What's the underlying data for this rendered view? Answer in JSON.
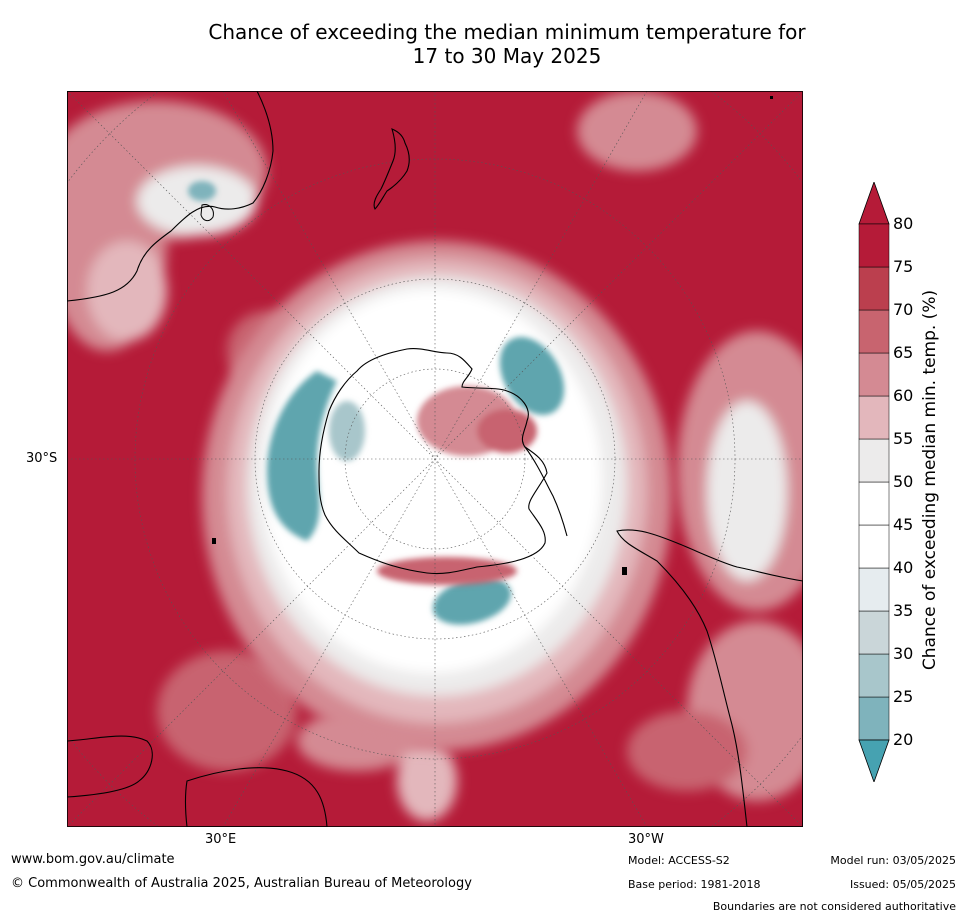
{
  "title": {
    "line1": "Chance of exceeding the median minimum temperature for",
    "line2": "17 to 30 May 2025"
  },
  "map": {
    "projection": "south-polar-stereographic",
    "lat_label": "30°S",
    "lon_labels": {
      "east": "30°E",
      "west": "30°W"
    },
    "background_color": "#b51b38",
    "land_outline_color": "#000000"
  },
  "colorbar": {
    "title": "Chance of exceeding median min. temp. (%)",
    "levels": [
      "20",
      "25",
      "30",
      "35",
      "40",
      "45",
      "50",
      "55",
      "60",
      "65",
      "70",
      "75",
      "80"
    ],
    "colors": [
      "#5ea5ae",
      "#7fb3bc",
      "#a8c6cb",
      "#cad6d9",
      "#e6ecef",
      "#ffffff",
      "#ffffff",
      "#ecebeb",
      "#e3b7bc",
      "#d48a93",
      "#c8646f",
      "#bb3f4e",
      "#b51b38"
    ],
    "low_extend_color": "#46a2b1",
    "high_extend_color": "#b51b38"
  },
  "footer": {
    "website": "www.bom.gov.au/climate",
    "copyright": "© Commonwealth of Australia 2025, Australian Bureau of Meteorology",
    "model": "Model: ACCESS-S2",
    "base_period": "Base period: 1981-2018",
    "model_run": "Model run: 03/05/2025",
    "issued": "Issued: 05/05/2025",
    "disclaimer": "Boundaries are not considered authoritative"
  }
}
